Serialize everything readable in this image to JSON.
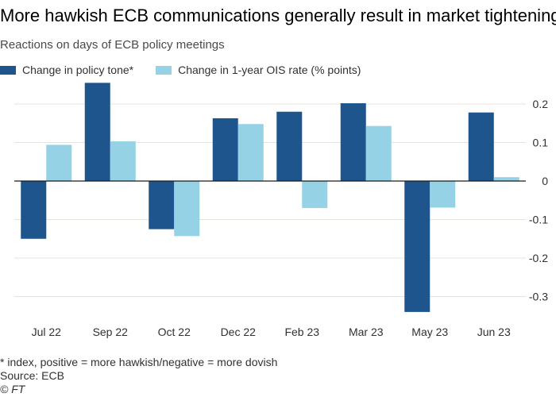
{
  "title": "More hawkish ECB communications generally result in market tightening",
  "subtitle": "Reactions on days of ECB policy meetings",
  "note": "* index, positive = more hawkish/negative = more dovish",
  "source": "Source: ECB",
  "credit": "© FT",
  "colors": {
    "series1": "#1e558c",
    "series2": "#96d2e6",
    "grid": "#e6e3dd",
    "zero": "#1a1a1a"
  },
  "chart_data": {
    "type": "bar",
    "categories": [
      "Jul 22",
      "Sep 22",
      "Oct 22",
      "Dec 22",
      "Feb 23",
      "Mar 23",
      "May 23",
      "Jun 23"
    ],
    "series": [
      {
        "name": "Change in policy tone*",
        "values": [
          -0.15,
          0.255,
          -0.125,
          0.163,
          0.18,
          0.202,
          -0.34,
          0.178
        ]
      },
      {
        "name": "Change in 1-year OIS rate (% points)",
        "values": [
          0.094,
          0.103,
          -0.143,
          0.148,
          -0.07,
          0.143,
          -0.069,
          0.01
        ]
      }
    ],
    "ylim": [
      -0.34,
      0.26
    ],
    "yticks": [
      0.2,
      0.1,
      0,
      -0.1,
      -0.2,
      -0.3
    ],
    "ytick_labels": [
      "0.2",
      "0.1",
      "0",
      "-0.1",
      "-0.2",
      "-0.3"
    ],
    "grid": true,
    "legend": "top-left"
  }
}
